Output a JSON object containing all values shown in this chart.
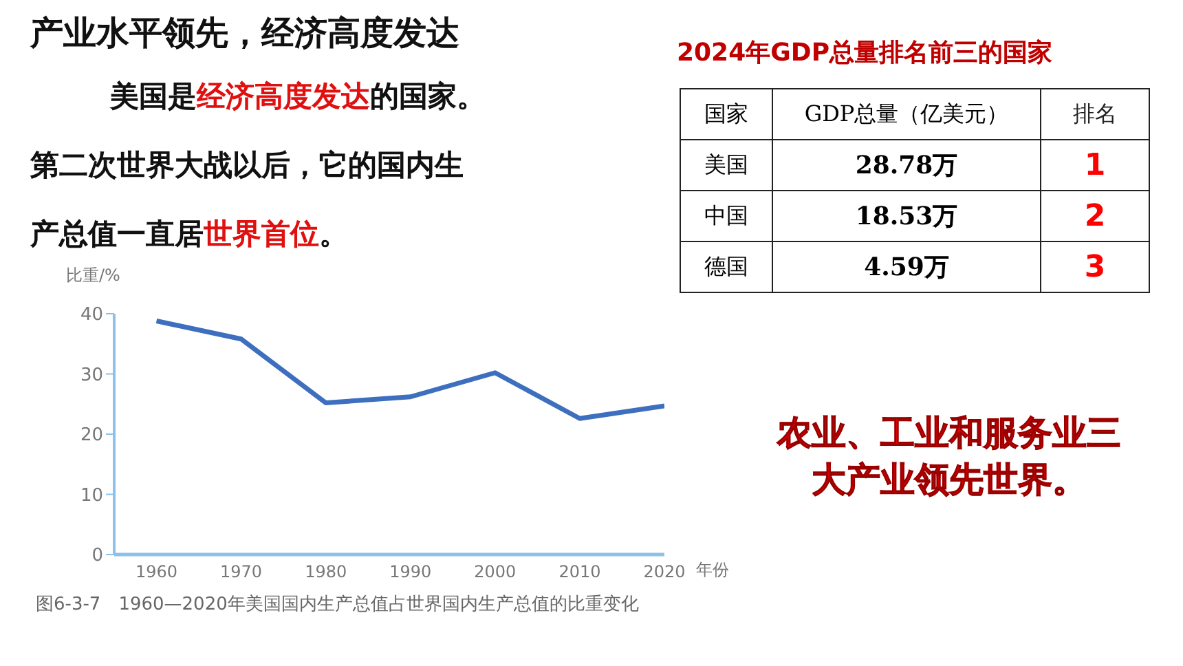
{
  "chart_data": {
    "type": "line",
    "title": "产业水平领先，经济高度发达",
    "xlabel": "年份",
    "ylabel": "比重/%",
    "x": [
      1960,
      1970,
      1980,
      1990,
      2000,
      2010,
      2020
    ],
    "series": [
      {
        "color": "#3d6fbe",
        "values": [
          38.8,
          35.8,
          25.2,
          26.2,
          30.2,
          22.6,
          24.7
        ]
      }
    ],
    "xlim": [
      1955,
      2020
    ],
    "xticks": [
      1960,
      1970,
      1980,
      1990,
      2000,
      2010,
      2020
    ],
    "ylim": [
      0,
      40
    ],
    "yticks": [
      0,
      10,
      20,
      30,
      40
    ],
    "grid": false,
    "legend": false,
    "line_style": "solid",
    "annotations": [
      "美国是",
      "经济高度发达",
      "的国家。",
      "第二次世界大战以后，它的国内生",
      "产总值一直居",
      "世界首位",
      "。",
      "2024年GDP总量排名前三的国家",
      "国家",
      "GDP总量（亿美元）",
      "排名",
      "美国",
      "28.78万",
      "1",
      "中国",
      "18.53万",
      "2",
      "德国",
      "4.59万",
      "3",
      "农业、工业和服务业三大产业领先世界。",
      "图6-3-7　1960—2020年美国国内生产总值占世界国内生产总值的比重变化"
    ]
  }
}
